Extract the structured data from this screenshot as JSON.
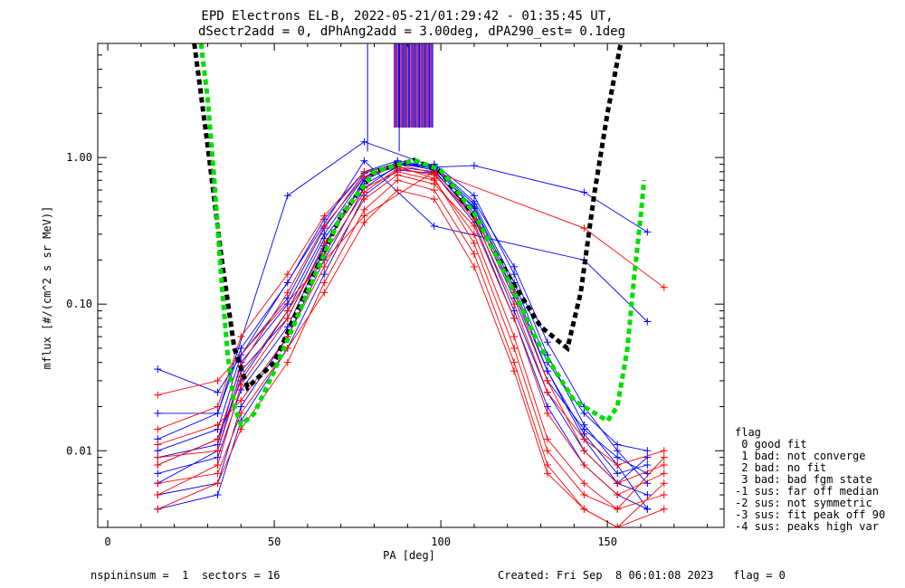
{
  "header": {
    "title_line1": "EPD Electrons EL-B, 2022-05-21/01:29:42 - 01:35:45 UT,",
    "title_line2": "dSectr2add = 0, dPhAng2add = 3.00deg, dPA290_est=   0.1deg"
  },
  "chart_data": {
    "type": "line",
    "xlabel": "PA [deg]",
    "ylabel": "mflux [#/(cm^2 s sr MeV)]",
    "xlim": [
      -3,
      185
    ],
    "ylim": [
      0.003,
      6.0
    ],
    "yscale": "log",
    "x_ticks": [
      0,
      50,
      100,
      150
    ],
    "x_tick_labels": [
      "0",
      "50",
      "100",
      "150"
    ],
    "y_ticks": [
      0.01,
      0.1,
      1.0
    ],
    "y_tick_labels": [
      "0.01",
      "0.10",
      "1.00"
    ],
    "grid": false,
    "x_samples": [
      15,
      33,
      40,
      54,
      65,
      77,
      87,
      98,
      110,
      122,
      132,
      143,
      153,
      162,
      167
    ],
    "series": [
      {
        "color": "#0000ff",
        "values": [
          0.006,
          0.01,
          0.035,
          0.08,
          0.25,
          0.7,
          0.9,
          0.85,
          0.45,
          0.12,
          0.035,
          0.012,
          0.006,
          0.005,
          null
        ]
      },
      {
        "color": "#0000ff",
        "values": [
          0.01,
          0.014,
          0.045,
          0.11,
          0.33,
          0.78,
          0.92,
          0.82,
          0.4,
          0.09,
          0.025,
          0.01,
          0.006,
          0.009,
          null
        ]
      },
      {
        "color": "#0000ff",
        "values": [
          0.005,
          0.006,
          0.02,
          0.06,
          0.2,
          0.62,
          0.88,
          0.9,
          0.55,
          0.16,
          0.045,
          0.015,
          0.008,
          0.004,
          null
        ]
      },
      {
        "color": "#0000ff",
        "values": [
          0.008,
          0.012,
          0.03,
          0.09,
          0.28,
          0.66,
          0.86,
          0.8,
          0.42,
          0.11,
          0.03,
          0.014,
          0.009,
          0.007,
          null
        ]
      },
      {
        "color": "#0000ff",
        "values": [
          0.012,
          0.018,
          0.05,
          0.14,
          0.38,
          0.8,
          0.95,
          0.86,
          0.48,
          0.14,
          0.04,
          0.018,
          0.011,
          0.01,
          null
        ]
      },
      {
        "color": "#0000ff",
        "values": [
          0.004,
          0.005,
          0.016,
          0.05,
          0.16,
          0.55,
          0.82,
          0.78,
          0.36,
          0.08,
          0.02,
          0.008,
          0.005,
          0.004,
          null
        ]
      },
      {
        "color": "#0000ff",
        "values": [
          0.007,
          0.009,
          0.026,
          0.07,
          0.24,
          0.72,
          0.91,
          0.88,
          0.5,
          0.18,
          0.055,
          0.02,
          0.01,
          0.006,
          null
        ]
      },
      {
        "color": "#0000ff",
        "values": [
          0.009,
          0.011,
          0.04,
          0.1,
          0.3,
          0.74,
          0.93,
          0.84,
          0.46,
          0.13,
          0.035,
          0.013,
          0.007,
          0.008,
          null
        ]
      },
      {
        "color": "#0000ff",
        "values": [
          0.018,
          0.018,
          null,
          0.55,
          null,
          1.28,
          null,
          0.86,
          0.88,
          null,
          null,
          0.58,
          null,
          0.31,
          null
        ]
      },
      {
        "color": "#0000ff",
        "values": [
          0.036,
          0.025,
          null,
          null,
          null,
          0.95,
          null,
          0.34,
          null,
          null,
          null,
          0.2,
          null,
          0.076,
          null
        ]
      },
      {
        "color": "#ff0000",
        "values": [
          0.005,
          0.008,
          0.028,
          0.08,
          0.26,
          0.62,
          0.8,
          0.7,
          0.3,
          0.06,
          0.012,
          0.006,
          0.004,
          null,
          0.005
        ]
      },
      {
        "color": "#ff0000",
        "values": [
          0.008,
          0.012,
          0.038,
          0.12,
          0.34,
          0.74,
          0.87,
          0.72,
          0.26,
          0.05,
          0.01,
          0.005,
          0.004,
          null,
          0.009
        ]
      },
      {
        "color": "#ff0000",
        "values": [
          0.011,
          0.015,
          0.022,
          0.06,
          0.18,
          0.52,
          0.76,
          0.66,
          0.34,
          0.08,
          0.018,
          0.008,
          0.005,
          null,
          0.007
        ]
      },
      {
        "color": "#ff0000",
        "values": [
          0.004,
          0.006,
          0.014,
          0.04,
          0.14,
          0.44,
          0.7,
          0.6,
          0.22,
          0.04,
          0.008,
          0.004,
          0.003,
          null,
          0.004
        ]
      },
      {
        "color": "#ff0000",
        "values": [
          0.014,
          0.02,
          0.06,
          0.16,
          0.4,
          0.8,
          0.9,
          0.78,
          0.38,
          0.1,
          0.025,
          0.012,
          0.008,
          null,
          0.01
        ]
      },
      {
        "color": "#ff0000",
        "values": [
          0.006,
          0.007,
          0.018,
          0.05,
          0.12,
          0.36,
          0.6,
          0.52,
          0.18,
          0.035,
          0.007,
          0.004,
          0.003,
          null,
          0.006
        ]
      },
      {
        "color": "#ff0000",
        "values": [
          0.024,
          0.03,
          null,
          null,
          null,
          0.4,
          null,
          0.8,
          null,
          null,
          null,
          0.33,
          null,
          null,
          0.13
        ]
      },
      {
        "color": "#ff0000",
        "values": [
          0.009,
          0.01,
          0.032,
          0.09,
          0.22,
          0.58,
          0.84,
          0.76,
          0.4,
          0.12,
          0.03,
          0.01,
          0.006,
          null,
          0.008
        ]
      }
    ],
    "fit_curves": [
      {
        "color": "#000000",
        "x": [
          26,
          30,
          34,
          38,
          42,
          50,
          60,
          70,
          80,
          92,
          100,
          110,
          120,
          130,
          138,
          142,
          146,
          150,
          154
        ],
        "values": [
          6.0,
          1.2,
          0.22,
          0.05,
          0.027,
          0.04,
          0.13,
          0.4,
          0.8,
          0.96,
          0.8,
          0.4,
          0.16,
          0.07,
          0.05,
          0.12,
          0.55,
          2.0,
          6.0
        ]
      },
      {
        "color": "#00dd00",
        "x": [
          28,
          30,
          32,
          34,
          36,
          38,
          40,
          44,
          50,
          60,
          70,
          80,
          92,
          100,
          110,
          120,
          130,
          140,
          150,
          153,
          156,
          158,
          160,
          161
        ],
        "values": [
          6.0,
          2.5,
          0.7,
          0.16,
          0.045,
          0.02,
          0.015,
          0.018,
          0.035,
          0.12,
          0.4,
          0.8,
          0.96,
          0.82,
          0.42,
          0.15,
          0.05,
          0.022,
          0.016,
          0.02,
          0.05,
          0.15,
          0.4,
          0.7
        ]
      }
    ]
  },
  "legend": {
    "title": "flag",
    "items": [
      " 0 good fit",
      " 1 bad: not converge",
      " 2 bad: no fit",
      " 3 bad: bad fgm state",
      "-1 sus: far off median",
      "-2 sus: not symmetric",
      "-3 sus: fit peak off 90",
      "-4 sus: peaks high var"
    ]
  },
  "footer": {
    "left": "nspininsum =  1  sectors = 16",
    "right": "Created: Fri Sep  8 06:01:08 2023   flag = 0"
  }
}
